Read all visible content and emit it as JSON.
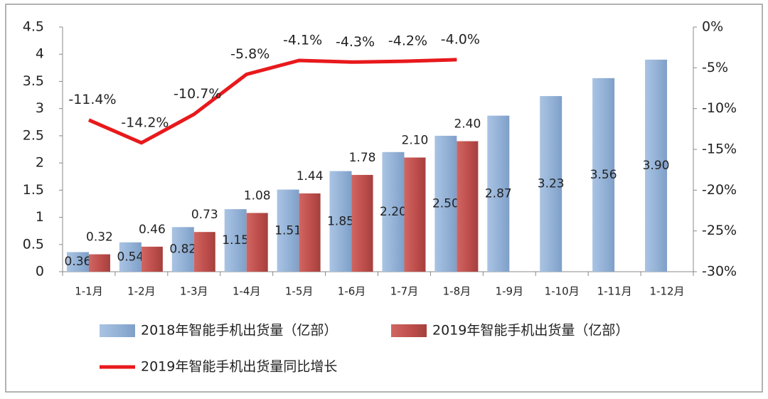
{
  "chart_data": {
    "type": "bar-line",
    "categories": [
      "1-1月",
      "1-2月",
      "1-3月",
      "1-4月",
      "1-5月",
      "1-6月",
      "1-7月",
      "1-8月",
      "1-9月",
      "1-10月",
      "1-11月",
      "1-12月"
    ],
    "series": [
      {
        "name": "2018年智能手机出货量（亿部）",
        "color": "#95b3d7",
        "type": "bar",
        "values": [
          0.36,
          0.54,
          0.82,
          1.15,
          1.51,
          1.85,
          2.2,
          2.5,
          2.87,
          3.23,
          3.56,
          3.9
        ],
        "value_labels": [
          "0.36",
          "0.54",
          "0.82",
          "1.15",
          "1.51",
          "1.85",
          "2.20",
          "2.50",
          "2.87",
          "3.23",
          "3.56",
          "3.90"
        ]
      },
      {
        "name": "2019年智能手机出货量（亿部）",
        "color": "#c0504d",
        "type": "bar",
        "values": [
          0.32,
          0.46,
          0.73,
          1.08,
          1.44,
          1.78,
          2.1,
          2.4,
          null,
          null,
          null,
          null
        ],
        "value_labels": [
          "0.32",
          "0.46",
          "0.73",
          "1.08",
          "1.44",
          "1.78",
          "2.10",
          "2.40",
          null,
          null,
          null,
          null
        ]
      },
      {
        "name": "2019年智能手机出货量同比增长",
        "color": "#e8191c",
        "type": "line",
        "axis": "y2",
        "values": [
          -11.4,
          -14.2,
          -10.7,
          -5.8,
          -4.1,
          -4.3,
          -4.2,
          -4.0,
          null,
          null,
          null,
          null
        ],
        "value_labels": [
          "-11.4%",
          "-14.2%",
          "-10.7%",
          "-5.8%",
          "-4.1%",
          "-4.3%",
          "-4.2%",
          "-4.0%",
          null,
          null,
          null,
          null
        ]
      }
    ],
    "ylim": [
      0,
      4.5
    ],
    "yticks": [
      0,
      0.5,
      1,
      1.5,
      2,
      2.5,
      3,
      3.5,
      4,
      4.5
    ],
    "y2lim": [
      -30,
      0
    ],
    "y2ticks": [
      {
        "value": -30,
        "label": "-30%"
      },
      {
        "value": -25,
        "label": "-25%"
      },
      {
        "value": -20,
        "label": "-20%"
      },
      {
        "value": -15,
        "label": "-15%"
      },
      {
        "value": -10,
        "label": "-10%"
      },
      {
        "value": -5,
        "label": "-5%"
      },
      {
        "value": 0,
        "label": "0%"
      }
    ],
    "legend": "bottom"
  }
}
